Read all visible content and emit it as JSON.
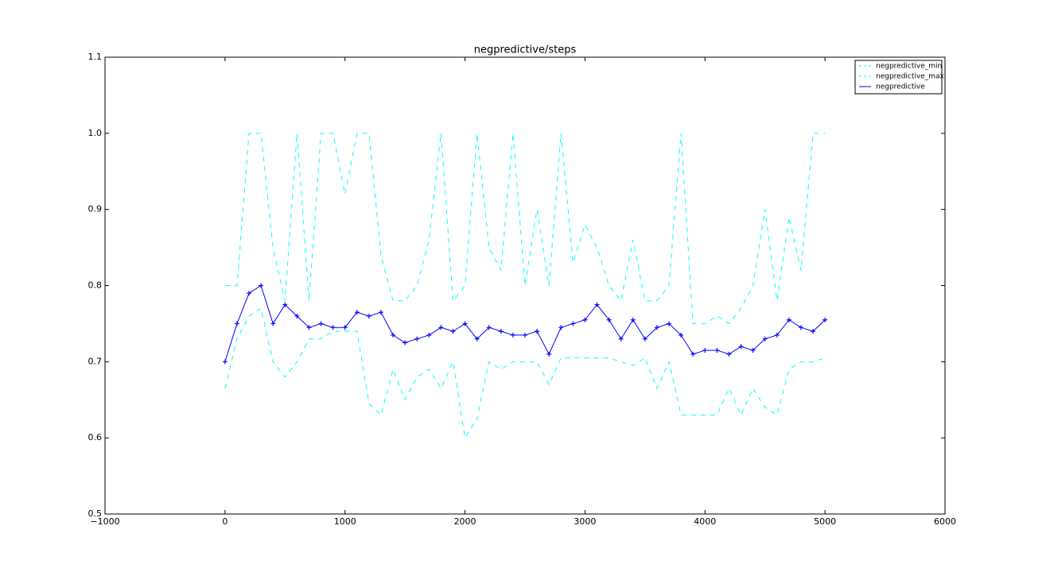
{
  "chart_data": {
    "type": "line",
    "title": "negpredictive/steps",
    "x": [
      0,
      100,
      200,
      300,
      400,
      500,
      600,
      700,
      800,
      900,
      1000,
      1100,
      1200,
      1300,
      1400,
      1500,
      1600,
      1700,
      1800,
      1900,
      2000,
      2100,
      2200,
      2300,
      2400,
      2500,
      2600,
      2700,
      2800,
      2900,
      3000,
      3100,
      3200,
      3300,
      3400,
      3500,
      3600,
      3700,
      3800,
      3900,
      4000,
      4100,
      4200,
      4300,
      4400,
      4500,
      4600,
      4700,
      4800,
      4900,
      5000
    ],
    "series": [
      {
        "name": "negpredictive_min",
        "color": "#00ffff",
        "linestyle": "dashed",
        "values": [
          0.665,
          0.73,
          0.76,
          0.77,
          0.7,
          0.68,
          0.7,
          0.73,
          0.73,
          0.74,
          0.74,
          0.74,
          0.645,
          0.63,
          0.69,
          0.65,
          0.68,
          0.69,
          0.665,
          0.7,
          0.6,
          0.625,
          0.7,
          0.69,
          0.7,
          0.7,
          0.7,
          0.67,
          0.705,
          0.705,
          0.705,
          0.705,
          0.705,
          0.7,
          0.695,
          0.705,
          0.665,
          0.7,
          0.63,
          0.63,
          0.63,
          0.63,
          0.665,
          0.63,
          0.665,
          0.64,
          0.63,
          0.69,
          0.7,
          0.7,
          0.705
        ]
      },
      {
        "name": "negpredictive_max",
        "color": "#00ffff",
        "linestyle": "dashed",
        "values": [
          0.8,
          0.8,
          1.0,
          1.0,
          0.85,
          0.78,
          1.0,
          0.78,
          1.0,
          1.0,
          0.92,
          1.0,
          1.0,
          0.84,
          0.78,
          0.78,
          0.8,
          0.86,
          1.0,
          0.78,
          0.8,
          1.0,
          0.85,
          0.82,
          1.0,
          0.8,
          0.9,
          0.8,
          1.0,
          0.83,
          0.88,
          0.85,
          0.8,
          0.78,
          0.86,
          0.78,
          0.78,
          0.8,
          1.0,
          0.75,
          0.75,
          0.76,
          0.75,
          0.77,
          0.8,
          0.9,
          0.78,
          0.89,
          0.82,
          1.0,
          1.0
        ]
      },
      {
        "name": "negpredictive",
        "color": "#0000ff",
        "linestyle": "solid",
        "marker": "+",
        "values": [
          0.7,
          0.75,
          0.79,
          0.8,
          0.75,
          0.775,
          0.76,
          0.745,
          0.75,
          0.745,
          0.745,
          0.765,
          0.76,
          0.765,
          0.735,
          0.725,
          0.73,
          0.735,
          0.745,
          0.74,
          0.75,
          0.73,
          0.745,
          0.74,
          0.735,
          0.735,
          0.74,
          0.71,
          0.745,
          0.75,
          0.755,
          0.775,
          0.755,
          0.73,
          0.755,
          0.73,
          0.745,
          0.75,
          0.735,
          0.71,
          0.715,
          0.715,
          0.71,
          0.72,
          0.715,
          0.73,
          0.735,
          0.755,
          0.745,
          0.74,
          0.755
        ]
      }
    ],
    "xlim": [
      -1000,
      6000
    ],
    "xticks": [
      {
        "value": -1000,
        "label": "−1000"
      },
      0,
      1000,
      2000,
      3000,
      4000,
      5000,
      6000
    ],
    "ylim": [
      0.5,
      1.1
    ],
    "yticks": [
      0.5,
      0.6,
      0.7,
      0.8,
      0.9,
      {
        "value": 1.0,
        "label": "1.0"
      },
      1.1
    ],
    "legend": "upper right"
  }
}
